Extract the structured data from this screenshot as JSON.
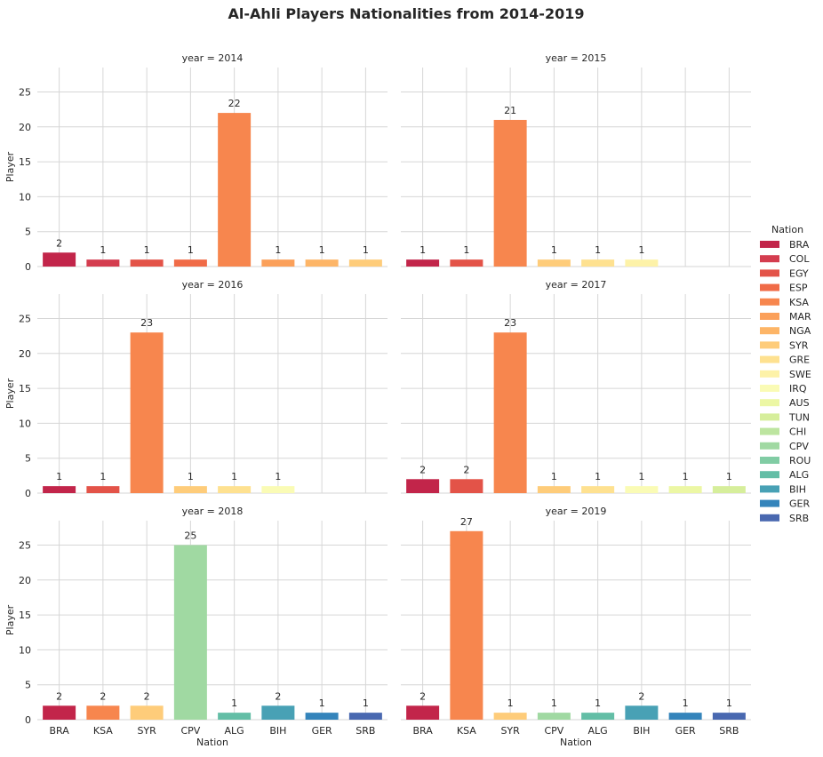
{
  "chart_data": {
    "type": "bar",
    "title": "Al-Ahli Players Nationalities from 2014-2019",
    "xlabel": "Nation",
    "ylabel": "Player",
    "ylim": [
      0,
      28.5
    ],
    "yticks": [
      0,
      5,
      10,
      15,
      20,
      25
    ],
    "grid": true,
    "legend_title": "Nation",
    "legend_placement": "right",
    "nation_colors": {
      "BRA": "#c2254a",
      "COL": "#d43d4f",
      "EGY": "#e35348",
      "ESP": "#f06b47",
      "KSA": "#f7864e",
      "MAR": "#fba05a",
      "NGA": "#fdb567",
      "SYR": "#fecc7a",
      "GRE": "#fee190",
      "SWE": "#fdf2a8",
      "IRQ": "#fafbb5",
      "AUS": "#ecf7a4",
      "TUN": "#d6ee9b",
      "CHI": "#bde5a0",
      "CPV": "#a0d9a2",
      "ROU": "#81cca4",
      "ALG": "#63bea6",
      "BIH": "#48a1b5",
      "GER": "#3484bb",
      "SRB": "#4968b0"
    },
    "panels": [
      {
        "label": "year = 2014",
        "bars": [
          {
            "nation": "BRA",
            "value": 2
          },
          {
            "nation": "COL",
            "value": 1
          },
          {
            "nation": "EGY",
            "value": 1
          },
          {
            "nation": "ESP",
            "value": 1
          },
          {
            "nation": "KSA",
            "value": 22
          },
          {
            "nation": "MAR",
            "value": 1
          },
          {
            "nation": "NGA",
            "value": 1
          },
          {
            "nation": "SYR",
            "value": 1
          }
        ]
      },
      {
        "label": "year = 2015",
        "bars": [
          {
            "nation": "BRA",
            "value": 1
          },
          {
            "nation": "EGY",
            "value": 1
          },
          {
            "nation": "KSA",
            "value": 21
          },
          {
            "nation": "SYR",
            "value": 1
          },
          {
            "nation": "GRE",
            "value": 1
          },
          {
            "nation": "SWE",
            "value": 1
          }
        ]
      },
      {
        "label": "year = 2016",
        "bars": [
          {
            "nation": "BRA",
            "value": 1
          },
          {
            "nation": "EGY",
            "value": 1
          },
          {
            "nation": "KSA",
            "value": 23
          },
          {
            "nation": "SYR",
            "value": 1
          },
          {
            "nation": "GRE",
            "value": 1
          },
          {
            "nation": "IRQ",
            "value": 1
          }
        ]
      },
      {
        "label": "year = 2017",
        "bars": [
          {
            "nation": "BRA",
            "value": 2
          },
          {
            "nation": "EGY",
            "value": 2
          },
          {
            "nation": "KSA",
            "value": 23
          },
          {
            "nation": "SYR",
            "value": 1
          },
          {
            "nation": "GRE",
            "value": 1
          },
          {
            "nation": "IRQ",
            "value": 1
          },
          {
            "nation": "AUS",
            "value": 1
          },
          {
            "nation": "TUN",
            "value": 1
          }
        ]
      },
      {
        "label": "year = 2018",
        "bars": [
          {
            "nation": "BRA",
            "value": 2
          },
          {
            "nation": "KSA",
            "value": 2
          },
          {
            "nation": "SYR",
            "value": 2
          },
          {
            "nation": "CPV",
            "value": 25
          },
          {
            "nation": "ALG",
            "value": 1
          },
          {
            "nation": "BIH",
            "value": 2
          },
          {
            "nation": "GER",
            "value": 1
          },
          {
            "nation": "SRB",
            "value": 1
          }
        ]
      },
      {
        "label": "year = 2019",
        "bars": [
          {
            "nation": "BRA",
            "value": 2
          },
          {
            "nation": "KSA",
            "value": 27
          },
          {
            "nation": "SYR",
            "value": 1
          },
          {
            "nation": "CPV",
            "value": 1
          },
          {
            "nation": "ALG",
            "value": 1
          },
          {
            "nation": "BIH",
            "value": 2
          },
          {
            "nation": "GER",
            "value": 1
          },
          {
            "nation": "SRB",
            "value": 1
          }
        ]
      }
    ],
    "x_tick_labels": [
      "BRA",
      "KSA",
      "SYR",
      "CPV",
      "ALG",
      "BIH",
      "GER",
      "SRB"
    ]
  }
}
